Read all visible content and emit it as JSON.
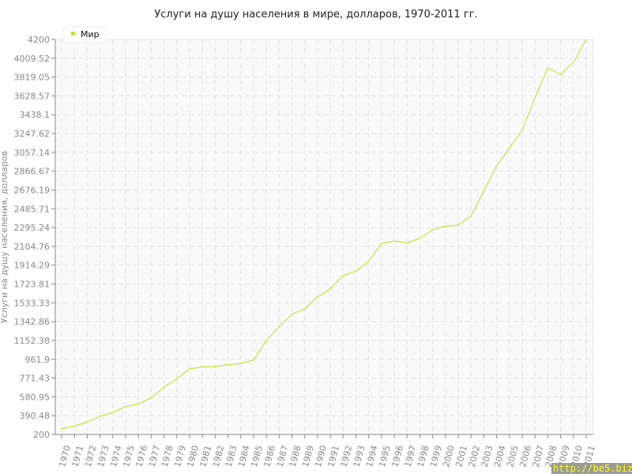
{
  "chart_data": {
    "type": "line",
    "title": "Услуги на душу населения в мире, долларов, 1970-2011 гг.",
    "xlabel": "",
    "ylabel": "Услуги на душу населения, долларов",
    "ylim": [
      200,
      4200
    ],
    "yticks": [
      "200",
      "390.48",
      "580.95",
      "771.43",
      "961.9",
      "1152.38",
      "1342.86",
      "1533.33",
      "1723.81",
      "1914.29",
      "2104.76",
      "2295.24",
      "2485.71",
      "2676.19",
      "2866.67",
      "3057.14",
      "3247.62",
      "3438.1",
      "3628.57",
      "3819.05",
      "4009.52",
      "4200"
    ],
    "grid": true,
    "legend_position": "top-left",
    "x": [
      1970,
      1971,
      1972,
      1973,
      1974,
      1975,
      1976,
      1977,
      1978,
      1979,
      1980,
      1981,
      1982,
      1983,
      1984,
      1985,
      1986,
      1987,
      1988,
      1989,
      1990,
      1991,
      1992,
      1993,
      1994,
      1995,
      1996,
      1997,
      1998,
      1999,
      2000,
      2001,
      2002,
      2003,
      2004,
      2005,
      2006,
      2007,
      2008,
      2009,
      2010,
      2011
    ],
    "series": [
      {
        "name": "Мир",
        "color": "#c5e03a",
        "values": [
          258,
          286,
          325,
          384,
          424,
          482,
          512,
          570,
          678,
          765,
          864,
          885,
          888,
          907,
          920,
          952,
          1150,
          1293,
          1418,
          1472,
          1592,
          1675,
          1811,
          1851,
          1955,
          2136,
          2160,
          2139,
          2187,
          2275,
          2309,
          2320,
          2412,
          2666,
          2920,
          3102,
          3280,
          3608,
          3912,
          3846,
          3968,
          4200
        ]
      }
    ]
  },
  "watermark": "http://be5.biz/"
}
